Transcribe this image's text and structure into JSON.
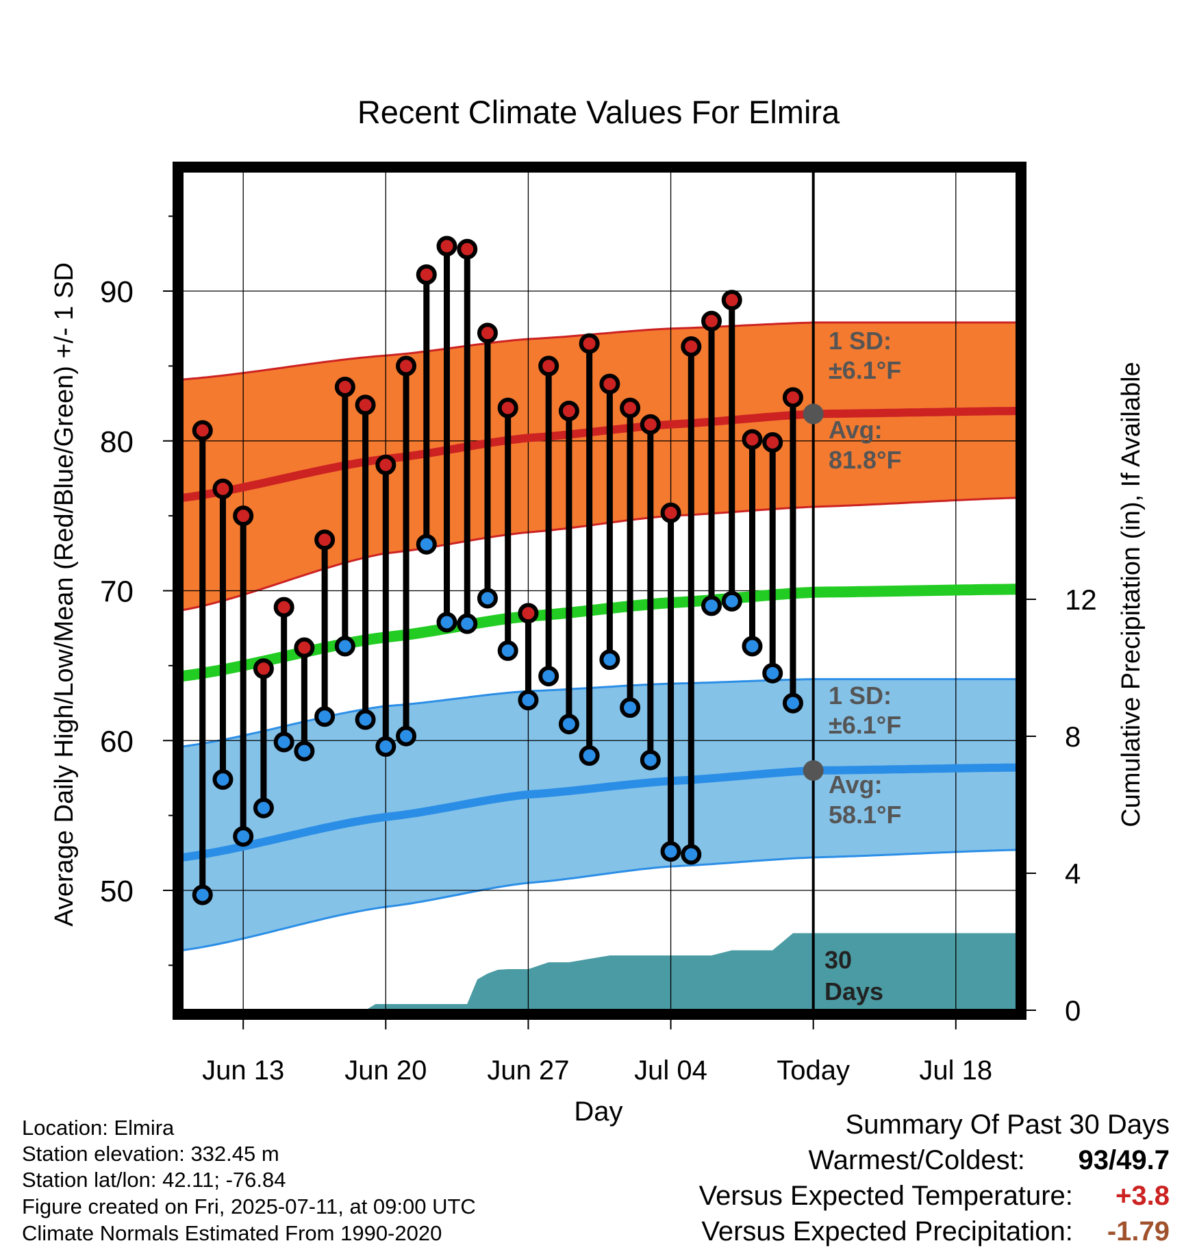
{
  "chart_data": {
    "type": "line",
    "title": "Recent Climate Values For Elmira",
    "xlabel": "Day",
    "ylabel_left": "Average Daily High/Low/Mean (Red/Blue/Green) +/- 1 SD",
    "ylabel_right": "Cumulative Precipitation (in), If Available",
    "x_range": [
      "Jun 10",
      "Jul 21"
    ],
    "ylim_left": [
      42,
      98
    ],
    "ylim_right": [
      0,
      24.5
    ],
    "x_ticks": [
      {
        "date": "Jun 13",
        "label": "Jun 13"
      },
      {
        "date": "Jun 20",
        "label": "Jun 20"
      },
      {
        "date": "Jun 27",
        "label": "Jun 27"
      },
      {
        "date": "Jul 04",
        "label": "Jul 04"
      },
      {
        "date": "Jul 11",
        "label": "Today"
      },
      {
        "date": "Jul 18",
        "label": "Jul 18"
      }
    ],
    "y_ticks_left": [
      50,
      60,
      70,
      80,
      90
    ],
    "y_minor_left": [
      45,
      55,
      65,
      75,
      85,
      95
    ],
    "y_ticks_right": [
      0,
      4,
      8,
      12
    ],
    "today": "Jul 11",
    "normals": {
      "x": [
        "Jun 10",
        "Jun 20",
        "Jun 27",
        "Jul 04",
        "Jul 11",
        "Jul 21"
      ],
      "high_mean": [
        76.2,
        78.8,
        80.2,
        81.1,
        81.8,
        82.0
      ],
      "high_upper": [
        84.1,
        85.7,
        86.8,
        87.5,
        87.9,
        87.9
      ],
      "high_lower": [
        68.7,
        72.5,
        73.9,
        75.0,
        75.6,
        76.2
      ],
      "low_mean": [
        52.2,
        54.9,
        56.4,
        57.3,
        58.0,
        58.2
      ],
      "low_upper": [
        59.6,
        62.3,
        63.3,
        63.8,
        64.1,
        64.1
      ],
      "low_lower": [
        46.0,
        48.9,
        50.5,
        51.6,
        52.2,
        52.7
      ],
      "avg_mean": [
        64.3,
        66.9,
        68.3,
        69.2,
        69.9,
        70.1
      ]
    },
    "series": [
      {
        "name": "High",
        "color": "#cc2222",
        "x": [
          "Jun 11",
          "Jun 12",
          "Jun 13",
          "Jun 14",
          "Jun 15",
          "Jun 16",
          "Jun 17",
          "Jun 18",
          "Jun 19",
          "Jun 20",
          "Jun 21",
          "Jun 22",
          "Jun 23",
          "Jun 24",
          "Jun 25",
          "Jun 26",
          "Jun 27",
          "Jun 28",
          "Jun 29",
          "Jun 30",
          "Jul 01",
          "Jul 02",
          "Jul 03",
          "Jul 04",
          "Jul 05",
          "Jul 06",
          "Jul 07",
          "Jul 08",
          "Jul 09",
          "Jul 10"
        ],
        "values": [
          80.7,
          76.8,
          75.0,
          64.8,
          68.9,
          66.2,
          73.4,
          83.6,
          82.4,
          78.4,
          85.0,
          91.1,
          93.0,
          92.8,
          87.2,
          82.2,
          68.5,
          85.0,
          82.0,
          86.5,
          83.8,
          82.2,
          81.1,
          75.2,
          86.3,
          88.0,
          89.4,
          80.1,
          79.9,
          82.9
        ]
      },
      {
        "name": "Low",
        "color": "#2b8ee6",
        "x": [
          "Jun 11",
          "Jun 12",
          "Jun 13",
          "Jun 14",
          "Jun 15",
          "Jun 16",
          "Jun 17",
          "Jun 18",
          "Jun 19",
          "Jun 20",
          "Jun 21",
          "Jun 22",
          "Jun 23",
          "Jun 24",
          "Jun 25",
          "Jun 26",
          "Jun 27",
          "Jun 28",
          "Jun 29",
          "Jun 30",
          "Jul 01",
          "Jul 02",
          "Jul 03",
          "Jul 04",
          "Jul 05",
          "Jul 06",
          "Jul 07",
          "Jul 08",
          "Jul 09",
          "Jul 10"
        ],
        "values": [
          49.7,
          57.4,
          53.6,
          55.5,
          59.9,
          59.3,
          61.6,
          66.3,
          61.4,
          59.6,
          60.3,
          73.1,
          67.9,
          67.8,
          69.5,
          66.0,
          62.7,
          64.3,
          61.1,
          59.0,
          65.4,
          62.2,
          58.7,
          52.6,
          52.4,
          69.0,
          69.3,
          66.3,
          64.5,
          62.5
        ]
      },
      {
        "name": "Cumulative Precipitation",
        "color": "#4a9ba3",
        "x": [
          "Jun 10",
          "Jun 15",
          "Jun 15.5",
          "Jun 16",
          "Jun 19",
          "Jun 19.5",
          "Jun 24",
          "Jun 24.5",
          "Jun 25",
          "Jun 25.5",
          "Jun 26",
          "Jun 27",
          "Jun 28",
          "Jun 29",
          "Jul 01",
          "Jul 02",
          "Jul 03",
          "Jul 04",
          "Jul 05",
          "Jul 06",
          "Jul 07",
          "Jul 08",
          "Jul 09",
          "Jul 10",
          "Jul 21"
        ],
        "values": [
          0.0,
          0.0,
          0.0,
          0.0,
          0.0,
          0.18,
          0.18,
          0.9,
          1.07,
          1.18,
          1.2,
          1.2,
          1.4,
          1.4,
          1.6,
          1.6,
          1.6,
          1.6,
          1.6,
          1.6,
          1.75,
          1.75,
          1.75,
          2.25,
          2.25
        ]
      }
    ],
    "annotations": {
      "high_sd_label": "1 SD:",
      "high_sd_value": "±6.1°F",
      "high_avg_label": "Avg:",
      "high_avg_value": "81.8°F",
      "low_sd_label": "1 SD:",
      "low_sd_value": "±6.1°F",
      "low_avg_label": "Avg:",
      "low_avg_value": "58.1°F",
      "days_line1": "30",
      "days_line2": "Days"
    },
    "grid": true
  },
  "info": {
    "location": "Location: Elmira",
    "elevation": "Station elevation: 332.45 m",
    "latlon": "Station lat/lon: 42.11; -76.84",
    "created": "Figure created on Fri, 2025-07-11, at 09:00 UTC",
    "normals": "Climate Normals Estimated From 1990-2020"
  },
  "summary": {
    "title": "Summary Of Past 30 Days",
    "warmest_label": "Warmest/Coldest:",
    "warmest_value": "93",
    "coldest_value": "49.7",
    "temp_label": "Versus Expected Temperature:",
    "temp_value": "+3.8",
    "precip_label": "Versus Expected Precipitation:",
    "precip_value": "-1.79"
  },
  "colors": {
    "high_band": "#f47a30",
    "high_line": "#cc2222",
    "low_band": "#85c2e8",
    "low_line": "#2b8ee6",
    "avg_line": "#22cc22",
    "precip": "#4a9ba3",
    "annotation": "#555555",
    "temp_anomaly": "#cc2222",
    "precip_anomaly": "#a0522d"
  }
}
